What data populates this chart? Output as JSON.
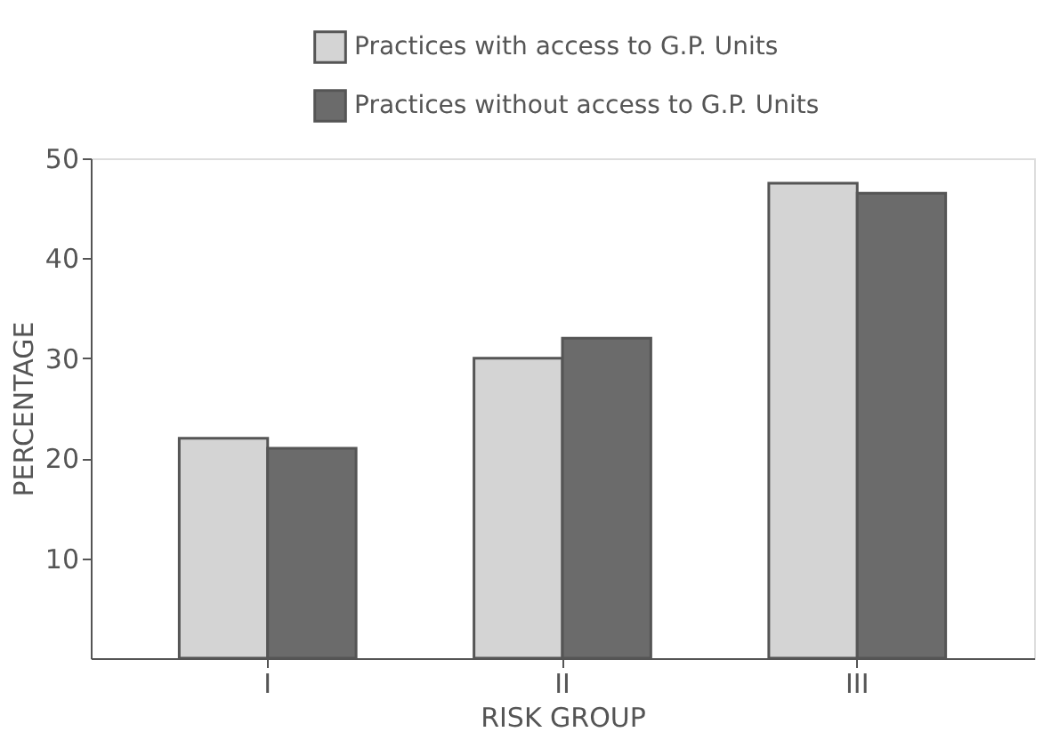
{
  "chart_data": {
    "type": "bar",
    "xlabel": "RISK GROUP",
    "ylabel": "PERCENTAGE",
    "categories": [
      "I",
      "II",
      "III"
    ],
    "series": [
      {
        "name": "Practices with access to G.P. Units",
        "color": "#d4d4d4",
        "values": [
          22,
          30,
          47.5
        ]
      },
      {
        "name": "Practices without access to G.P. Units",
        "color": "#6b6b6b",
        "values": [
          21,
          32,
          46.5
        ]
      }
    ],
    "ylim": [
      0,
      50
    ],
    "yticks": [
      10,
      20,
      30,
      40,
      50
    ],
    "grid": false,
    "legend": "top"
  }
}
